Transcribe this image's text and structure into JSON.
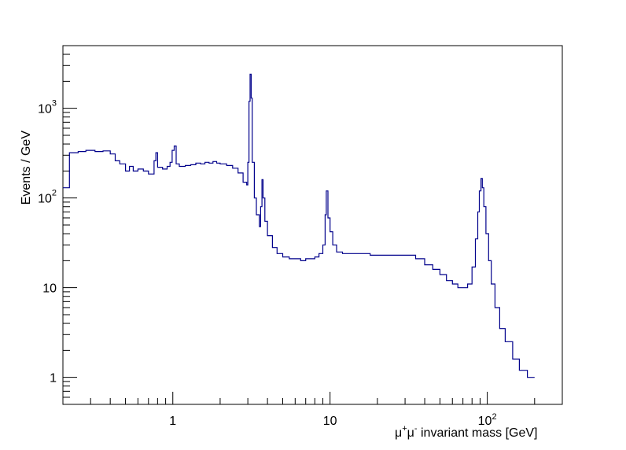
{
  "chart_data": {
    "type": "line",
    "subtype": "histogram-step",
    "xlabel": {
      "base": "μ",
      "sup1": "+",
      "mid": "μ",
      "sup2": "-",
      "rest": " invariant mass [GeV]"
    },
    "ylabel": "Events / GeV",
    "x_scale": "log",
    "y_scale": "log",
    "xlim": [
      0.2,
      300
    ],
    "ylim": [
      0.5,
      5000
    ],
    "grid": false,
    "line_color": "#00008b",
    "x_tick_labels": [
      {
        "value": 1,
        "base": "1",
        "exp": ""
      },
      {
        "value": 10,
        "base": "10",
        "exp": ""
      },
      {
        "value": 100,
        "base": "10",
        "exp": "2"
      }
    ],
    "y_tick_labels": [
      {
        "value": 1,
        "base": "1",
        "exp": ""
      },
      {
        "value": 10,
        "base": "10",
        "exp": ""
      },
      {
        "value": 100,
        "base": "10",
        "exp": "2"
      },
      {
        "value": 1000,
        "base": "10",
        "exp": "3"
      }
    ],
    "series": [
      {
        "points": [
          [
            0.2,
            130
          ],
          [
            0.22,
            320
          ],
          [
            0.25,
            330
          ],
          [
            0.28,
            340
          ],
          [
            0.32,
            330
          ],
          [
            0.36,
            335
          ],
          [
            0.4,
            310
          ],
          [
            0.43,
            260
          ],
          [
            0.46,
            240
          ],
          [
            0.5,
            200
          ],
          [
            0.53,
            225
          ],
          [
            0.56,
            200
          ],
          [
            0.6,
            210
          ],
          [
            0.65,
            200
          ],
          [
            0.7,
            185
          ],
          [
            0.76,
            260
          ],
          [
            0.78,
            320
          ],
          [
            0.8,
            220
          ],
          [
            0.86,
            210
          ],
          [
            0.92,
            225
          ],
          [
            0.96,
            250
          ],
          [
            0.99,
            340
          ],
          [
            1.02,
            380
          ],
          [
            1.05,
            240
          ],
          [
            1.1,
            225
          ],
          [
            1.2,
            230
          ],
          [
            1.3,
            235
          ],
          [
            1.4,
            245
          ],
          [
            1.5,
            240
          ],
          [
            1.6,
            250
          ],
          [
            1.7,
            245
          ],
          [
            1.8,
            255
          ],
          [
            1.9,
            245
          ],
          [
            2.0,
            240
          ],
          [
            2.2,
            230
          ],
          [
            2.4,
            215
          ],
          [
            2.6,
            190
          ],
          [
            2.8,
            150
          ],
          [
            2.95,
            140
          ],
          [
            3.0,
            250
          ],
          [
            3.05,
            1200
          ],
          [
            3.1,
            2400
          ],
          [
            3.15,
            1300
          ],
          [
            3.2,
            250
          ],
          [
            3.3,
            100
          ],
          [
            3.4,
            65
          ],
          [
            3.55,
            48
          ],
          [
            3.62,
            80
          ],
          [
            3.69,
            160
          ],
          [
            3.75,
            100
          ],
          [
            3.85,
            55
          ],
          [
            4.0,
            38
          ],
          [
            4.3,
            28
          ],
          [
            4.6,
            24
          ],
          [
            5.0,
            22
          ],
          [
            5.5,
            21
          ],
          [
            6.0,
            21
          ],
          [
            6.5,
            20
          ],
          [
            7.0,
            21
          ],
          [
            7.5,
            21
          ],
          [
            8.0,
            22
          ],
          [
            8.5,
            24
          ],
          [
            9.0,
            30
          ],
          [
            9.3,
            65
          ],
          [
            9.46,
            120
          ],
          [
            9.7,
            60
          ],
          [
            10.0,
            42
          ],
          [
            10.4,
            30
          ],
          [
            11.0,
            25
          ],
          [
            12.0,
            24
          ],
          [
            13.0,
            24
          ],
          [
            15.0,
            24
          ],
          [
            18.0,
            23
          ],
          [
            20.0,
            23
          ],
          [
            25.0,
            23
          ],
          [
            30.0,
            23
          ],
          [
            35.0,
            21
          ],
          [
            40.0,
            18
          ],
          [
            45.0,
            16
          ],
          [
            50.0,
            14
          ],
          [
            55.0,
            12
          ],
          [
            60.0,
            11
          ],
          [
            65.0,
            10
          ],
          [
            70.0,
            10
          ],
          [
            75.0,
            11
          ],
          [
            80.0,
            17
          ],
          [
            84.0,
            35
          ],
          [
            87.0,
            70
          ],
          [
            89.0,
            120
          ],
          [
            91.2,
            165
          ],
          [
            93.0,
            130
          ],
          [
            95.0,
            80
          ],
          [
            98.0,
            40
          ],
          [
            102.0,
            20
          ],
          [
            106.0,
            11
          ],
          [
            112.0,
            6
          ],
          [
            120.0,
            3.5
          ],
          [
            130.0,
            2.5
          ],
          [
            145.0,
            1.6
          ],
          [
            160.0,
            1.2
          ],
          [
            180.0,
            1.0
          ],
          [
            200.0,
            1.0
          ]
        ]
      }
    ]
  }
}
